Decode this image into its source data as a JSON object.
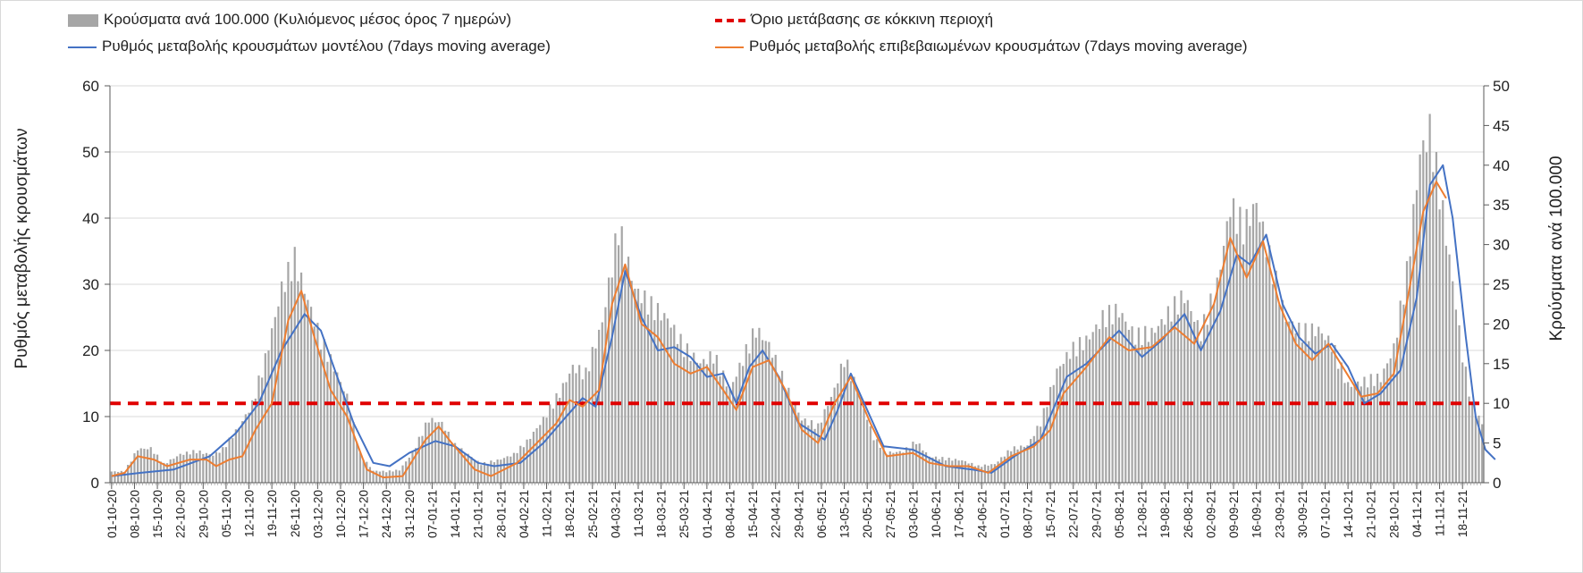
{
  "legend": {
    "bars": "Κρούσματα ανά 100.000 (Κυλιόμενος μέσος όρος 7 ημερών)",
    "threshold": "Όριο μετάβασης σε κόκκινη περιοχή",
    "model": "Ρυθμός μεταβολής κρουσμάτων μοντέλου (7days moving average)",
    "confirmed": "Ρυθμός μεταβολής επιβεβαιωμένων κρουσμάτων (7days moving average)"
  },
  "chart_data": {
    "type": "bar",
    "title": "",
    "ylabel": "Ρυθμός μεταβολής κρουσμάτων",
    "y2label": "Κρούσματα ανά 100.000",
    "ylim": [
      0,
      60
    ],
    "y2lim": [
      0,
      50
    ],
    "yticks": [
      0,
      10,
      20,
      30,
      40,
      50,
      60
    ],
    "y2ticks": [
      0,
      5,
      10,
      15,
      20,
      25,
      30,
      35,
      40,
      45,
      50
    ],
    "grid": true,
    "legend_position": "top",
    "x_start": "2020-10-01",
    "x_end": "2021-11-24",
    "categories": [
      "01-10-20",
      "08-10-20",
      "15-10-20",
      "22-10-20",
      "29-10-20",
      "05-11-20",
      "12-11-20",
      "19-11-20",
      "26-11-20",
      "03-12-20",
      "10-12-20",
      "17-12-20",
      "24-12-20",
      "31-12-20",
      "07-01-21",
      "14-01-21",
      "21-01-21",
      "28-01-21",
      "04-02-21",
      "11-02-21",
      "18-02-21",
      "25-02-21",
      "04-03-21",
      "11-03-21",
      "18-03-21",
      "25-03-21",
      "01-04-21",
      "08-04-21",
      "15-04-21",
      "22-04-21",
      "29-04-21",
      "06-05-21",
      "13-05-21",
      "20-05-21",
      "27-05-21",
      "03-06-21",
      "10-06-21",
      "17-06-21",
      "24-06-21",
      "01-07-21",
      "08-07-21",
      "15-07-21",
      "22-07-21",
      "29-07-21",
      "05-08-21",
      "12-08-21",
      "19-08-21",
      "26-08-21",
      "02-09-21",
      "09-09-21",
      "16-09-21",
      "23-09-21",
      "30-09-21",
      "07-10-21",
      "14-10-21",
      "21-10-21",
      "28-10-21",
      "04-11-21",
      "11-11-21",
      "18-11-21"
    ],
    "series": [
      {
        "name": "Κρούσματα ανά 100.000 (Κυλιόμενος μέσος όρος 7 ημερών)",
        "type": "bar",
        "axis": "right",
        "color": "#a6a6a6",
        "points": [
          [
            "2020-10-01",
            1.5
          ],
          [
            "2020-10-05",
            1.5
          ],
          [
            "2020-10-09",
            4.5
          ],
          [
            "2020-10-13",
            4.6
          ],
          [
            "2020-10-17",
            2.5
          ],
          [
            "2020-10-22",
            3.8
          ],
          [
            "2020-10-27",
            4.2
          ],
          [
            "2020-11-01",
            3.7
          ],
          [
            "2020-11-04",
            4.5
          ],
          [
            "2020-11-09",
            7.5
          ],
          [
            "2020-11-13",
            10.5
          ],
          [
            "2020-11-17",
            16.5
          ],
          [
            "2020-11-22",
            26.0
          ],
          [
            "2020-11-26",
            29.8
          ],
          [
            "2020-11-30",
            24.5
          ],
          [
            "2020-12-04",
            19.0
          ],
          [
            "2020-12-08",
            15.5
          ],
          [
            "2020-12-12",
            11.5
          ],
          [
            "2020-12-16",
            3.8
          ],
          [
            "2020-12-20",
            1.6
          ],
          [
            "2020-12-24",
            1.5
          ],
          [
            "2020-12-28",
            1.7
          ],
          [
            "2021-01-01",
            4.0
          ],
          [
            "2021-01-06",
            8.5
          ],
          [
            "2021-01-10",
            8.0
          ],
          [
            "2021-01-14",
            5.0
          ],
          [
            "2021-01-18",
            3.8
          ],
          [
            "2021-01-22",
            2.5
          ],
          [
            "2021-01-27",
            3.0
          ],
          [
            "2021-02-01",
            3.8
          ],
          [
            "2021-02-05",
            5.5
          ],
          [
            "2021-02-10",
            8.5
          ],
          [
            "2021-02-15",
            12.0
          ],
          [
            "2021-02-19",
            15.5
          ],
          [
            "2021-02-23",
            14.5
          ],
          [
            "2021-02-28",
            21.5
          ],
          [
            "2021-03-05",
            34.0
          ],
          [
            "2021-03-10",
            26.0
          ],
          [
            "2021-03-15",
            23.5
          ],
          [
            "2021-03-20",
            22.0
          ],
          [
            "2021-03-25",
            18.0
          ],
          [
            "2021-03-30",
            16.0
          ],
          [
            "2021-04-03",
            17.0
          ],
          [
            "2021-04-08",
            12.5
          ],
          [
            "2021-04-12",
            16.5
          ],
          [
            "2021-04-16",
            20.5
          ],
          [
            "2021-04-20",
            18.5
          ],
          [
            "2021-04-25",
            13.0
          ],
          [
            "2021-04-30",
            8.5
          ],
          [
            "2021-05-05",
            7.5
          ],
          [
            "2021-05-10",
            12.5
          ],
          [
            "2021-05-13",
            16.5
          ],
          [
            "2021-05-17",
            12.5
          ],
          [
            "2021-05-22",
            6.0
          ],
          [
            "2021-05-26",
            4.0
          ],
          [
            "2021-05-31",
            4.2
          ],
          [
            "2021-06-04",
            5.5
          ],
          [
            "2021-06-08",
            3.5
          ],
          [
            "2021-06-13",
            3.2
          ],
          [
            "2021-06-18",
            3.0
          ],
          [
            "2021-06-23",
            2.2
          ],
          [
            "2021-06-28",
            2.5
          ],
          [
            "2021-07-03",
            4.5
          ],
          [
            "2021-07-08",
            5.0
          ],
          [
            "2021-07-12",
            8.0
          ],
          [
            "2021-07-17",
            15.0
          ],
          [
            "2021-07-21",
            17.5
          ],
          [
            "2021-07-26",
            19.0
          ],
          [
            "2021-07-31",
            22.0
          ],
          [
            "2021-08-05",
            23.0
          ],
          [
            "2021-08-10",
            19.5
          ],
          [
            "2021-08-15",
            20.0
          ],
          [
            "2021-08-20",
            22.5
          ],
          [
            "2021-08-25",
            25.0
          ],
          [
            "2021-08-30",
            20.0
          ],
          [
            "2021-09-04",
            26.5
          ],
          [
            "2021-09-08",
            37.0
          ],
          [
            "2021-09-12",
            34.0
          ],
          [
            "2021-09-16",
            37.5
          ],
          [
            "2021-09-20",
            30.0
          ],
          [
            "2021-09-25",
            22.0
          ],
          [
            "2021-09-30",
            20.0
          ],
          [
            "2021-10-05",
            20.5
          ],
          [
            "2021-10-09",
            18.5
          ],
          [
            "2021-10-14",
            13.0
          ],
          [
            "2021-10-19",
            13.5
          ],
          [
            "2021-10-24",
            14.0
          ],
          [
            "2021-10-28",
            18.0
          ],
          [
            "2021-11-01",
            28.0
          ],
          [
            "2021-11-05",
            44.0
          ],
          [
            "2021-11-08",
            47.0
          ],
          [
            "2021-11-11",
            39.0
          ],
          [
            "2021-11-15",
            27.0
          ],
          [
            "2021-11-18",
            17.0
          ],
          [
            "2021-11-21",
            10.0
          ],
          [
            "2021-11-24",
            8.0
          ]
        ]
      },
      {
        "name": "Ρυθμός μεταβολής κρουσμάτων μοντέλου (7days moving average)",
        "type": "line",
        "axis": "left",
        "color": "#4472c4",
        "points": [
          [
            "2020-10-01",
            1.0
          ],
          [
            "2020-10-10",
            1.5
          ],
          [
            "2020-10-20",
            2.0
          ],
          [
            "2020-10-31",
            4.0
          ],
          [
            "2020-11-08",
            7.5
          ],
          [
            "2020-11-15",
            12.0
          ],
          [
            "2020-11-22",
            20.0
          ],
          [
            "2020-11-29",
            25.5
          ],
          [
            "2020-12-04",
            23.0
          ],
          [
            "2020-12-09",
            16.0
          ],
          [
            "2020-12-14",
            9.0
          ],
          [
            "2020-12-20",
            3.0
          ],
          [
            "2020-12-25",
            2.5
          ],
          [
            "2020-12-31",
            4.5
          ],
          [
            "2021-01-08",
            6.3
          ],
          [
            "2021-01-14",
            5.5
          ],
          [
            "2021-01-21",
            3.0
          ],
          [
            "2021-01-26",
            2.5
          ],
          [
            "2021-02-03",
            3.0
          ],
          [
            "2021-02-10",
            6.0
          ],
          [
            "2021-02-17",
            10.0
          ],
          [
            "2021-02-22",
            12.8
          ],
          [
            "2021-02-26",
            11.5
          ],
          [
            "2021-03-03",
            22.0
          ],
          [
            "2021-03-07",
            32.0
          ],
          [
            "2021-03-12",
            25.0
          ],
          [
            "2021-03-17",
            20.0
          ],
          [
            "2021-03-22",
            20.5
          ],
          [
            "2021-03-27",
            19.0
          ],
          [
            "2021-04-01",
            16.0
          ],
          [
            "2021-04-06",
            16.5
          ],
          [
            "2021-04-10",
            12.0
          ],
          [
            "2021-04-14",
            17.5
          ],
          [
            "2021-04-18",
            20.0
          ],
          [
            "2021-04-23",
            16.0
          ],
          [
            "2021-04-29",
            9.0
          ],
          [
            "2021-05-07",
            6.5
          ],
          [
            "2021-05-11",
            11.0
          ],
          [
            "2021-05-15",
            16.5
          ],
          [
            "2021-05-20",
            11.0
          ],
          [
            "2021-05-25",
            5.5
          ],
          [
            "2021-06-03",
            5.0
          ],
          [
            "2021-06-07",
            4.0
          ],
          [
            "2021-06-13",
            2.5
          ],
          [
            "2021-06-21",
            2.0
          ],
          [
            "2021-06-27",
            1.5
          ],
          [
            "2021-07-04",
            4.0
          ],
          [
            "2021-07-12",
            6.5
          ],
          [
            "2021-07-20",
            16.0
          ],
          [
            "2021-07-26",
            18.0
          ],
          [
            "2021-08-05",
            23.0
          ],
          [
            "2021-08-12",
            19.0
          ],
          [
            "2021-08-18",
            21.5
          ],
          [
            "2021-08-25",
            25.5
          ],
          [
            "2021-08-30",
            20.0
          ],
          [
            "2021-09-05",
            26.0
          ],
          [
            "2021-09-10",
            34.5
          ],
          [
            "2021-09-14",
            33.0
          ],
          [
            "2021-09-19",
            37.5
          ],
          [
            "2021-09-24",
            27.0
          ],
          [
            "2021-09-29",
            22.0
          ],
          [
            "2021-10-04",
            19.5
          ],
          [
            "2021-10-09",
            21.0
          ],
          [
            "2021-10-14",
            17.5
          ],
          [
            "2021-10-19",
            12.0
          ],
          [
            "2021-10-24",
            13.5
          ],
          [
            "2021-10-30",
            17.0
          ],
          [
            "2021-11-04",
            28.0
          ],
          [
            "2021-11-08",
            45.0
          ],
          [
            "2021-11-12",
            48.0
          ],
          [
            "2021-11-15",
            40.0
          ],
          [
            "2021-11-19",
            22.0
          ],
          [
            "2021-11-22",
            10.0
          ],
          [
            "2021-11-25",
            5.0
          ],
          [
            "2021-11-28",
            3.5
          ]
        ]
      },
      {
        "name": "Ρυθμός μεταβολής επιβεβαιωμένων κρουσμάτων (7days moving average)",
        "type": "line",
        "axis": "left",
        "color": "#ed7d31",
        "points": [
          [
            "2020-10-01",
            1.0
          ],
          [
            "2020-10-05",
            1.5
          ],
          [
            "2020-10-09",
            4.0
          ],
          [
            "2020-10-14",
            3.5
          ],
          [
            "2020-10-18",
            2.5
          ],
          [
            "2020-10-25",
            3.5
          ],
          [
            "2020-10-30",
            3.5
          ],
          [
            "2020-11-02",
            2.5
          ],
          [
            "2020-11-06",
            3.5
          ],
          [
            "2020-11-10",
            4.0
          ],
          [
            "2020-11-14",
            8.0
          ],
          [
            "2020-11-19",
            12.0
          ],
          [
            "2020-11-24",
            24.5
          ],
          [
            "2020-11-28",
            29.0
          ],
          [
            "2020-12-02",
            22.0
          ],
          [
            "2020-12-07",
            14.0
          ],
          [
            "2020-12-12",
            10.0
          ],
          [
            "2020-12-18",
            2.0
          ],
          [
            "2020-12-23",
            0.8
          ],
          [
            "2020-12-29",
            1.0
          ],
          [
            "2021-01-05",
            6.5
          ],
          [
            "2021-01-09",
            8.5
          ],
          [
            "2021-01-13",
            6.0
          ],
          [
            "2021-01-20",
            2.0
          ],
          [
            "2021-01-25",
            1.0
          ],
          [
            "2021-02-02",
            3.0
          ],
          [
            "2021-02-09",
            6.5
          ],
          [
            "2021-02-14",
            9.0
          ],
          [
            "2021-02-18",
            12.5
          ],
          [
            "2021-02-22",
            11.5
          ],
          [
            "2021-02-27",
            14.0
          ],
          [
            "2021-03-03",
            27.0
          ],
          [
            "2021-03-07",
            33.0
          ],
          [
            "2021-03-12",
            24.0
          ],
          [
            "2021-03-17",
            22.0
          ],
          [
            "2021-03-22",
            18.0
          ],
          [
            "2021-03-27",
            16.5
          ],
          [
            "2021-04-01",
            17.5
          ],
          [
            "2021-04-06",
            14.0
          ],
          [
            "2021-04-10",
            11.0
          ],
          [
            "2021-04-15",
            17.5
          ],
          [
            "2021-04-20",
            18.5
          ],
          [
            "2021-04-25",
            14.0
          ],
          [
            "2021-04-30",
            8.0
          ],
          [
            "2021-05-05",
            6.0
          ],
          [
            "2021-05-10",
            12.0
          ],
          [
            "2021-05-15",
            16.0
          ],
          [
            "2021-05-21",
            9.0
          ],
          [
            "2021-05-26",
            4.0
          ],
          [
            "2021-06-03",
            4.5
          ],
          [
            "2021-06-08",
            3.0
          ],
          [
            "2021-06-14",
            2.5
          ],
          [
            "2021-06-20",
            2.5
          ],
          [
            "2021-06-26",
            1.5
          ],
          [
            "2021-07-03",
            4.0
          ],
          [
            "2021-07-10",
            5.5
          ],
          [
            "2021-07-15",
            8.0
          ],
          [
            "2021-07-19",
            13.5
          ],
          [
            "2021-07-26",
            17.5
          ],
          [
            "2021-08-02",
            22.0
          ],
          [
            "2021-08-08",
            20.0
          ],
          [
            "2021-08-15",
            20.5
          ],
          [
            "2021-08-22",
            23.5
          ],
          [
            "2021-08-28",
            21.0
          ],
          [
            "2021-09-03",
            27.0
          ],
          [
            "2021-09-08",
            37.0
          ],
          [
            "2021-09-13",
            31.0
          ],
          [
            "2021-09-18",
            36.5
          ],
          [
            "2021-09-23",
            27.0
          ],
          [
            "2021-09-28",
            21.0
          ],
          [
            "2021-10-03",
            18.5
          ],
          [
            "2021-10-08",
            21.0
          ],
          [
            "2021-10-13",
            17.0
          ],
          [
            "2021-10-18",
            13.0
          ],
          [
            "2021-10-23",
            13.5
          ],
          [
            "2021-10-28",
            16.5
          ],
          [
            "2021-11-02",
            30.0
          ],
          [
            "2021-11-06",
            41.0
          ],
          [
            "2021-11-10",
            45.5
          ],
          [
            "2021-11-13",
            43.0
          ]
        ]
      },
      {
        "name": "Όριο μετάβασης σε κόκκινη περιοχή",
        "type": "threshold",
        "axis": "right",
        "color": "#e00000",
        "value": 10
      }
    ]
  }
}
